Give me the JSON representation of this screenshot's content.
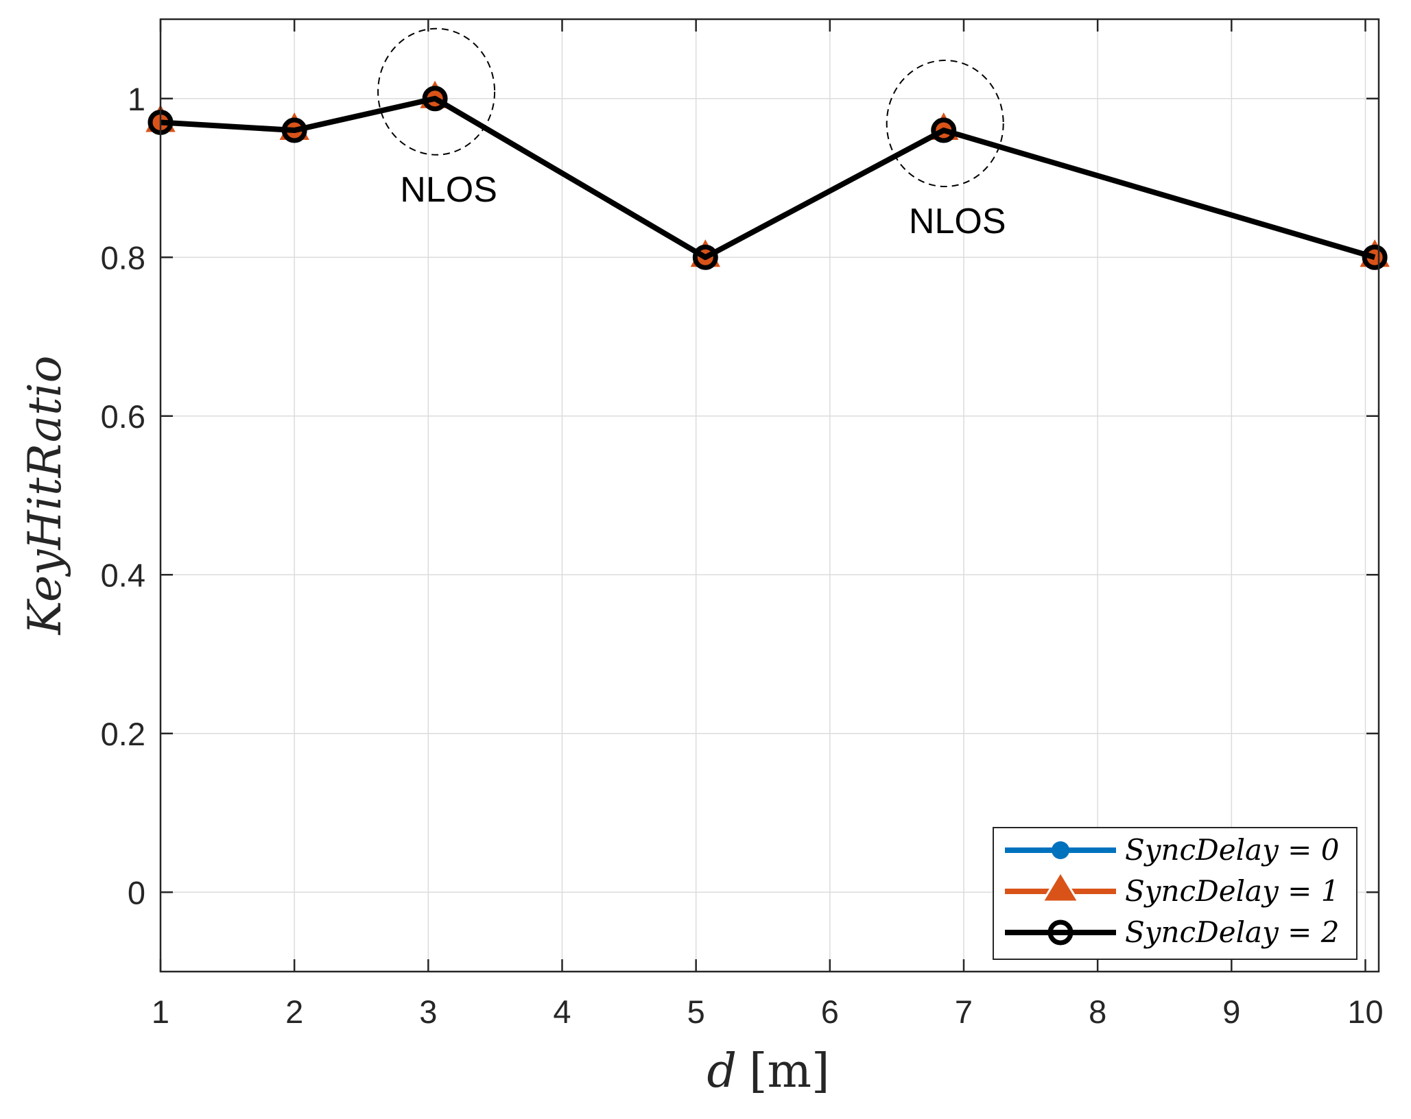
{
  "chart_data": {
    "type": "line",
    "xlabel_var": "d",
    "xlabel_unit": "[m]",
    "ylabel": "KeyHitRatio",
    "xlim": [
      1,
      10.1
    ],
    "ylim": [
      -0.1,
      1.1
    ],
    "xticks": [
      "1",
      "2",
      "3",
      "4",
      "5",
      "6",
      "7",
      "8",
      "9",
      "10"
    ],
    "yticks": [
      "0",
      "0.2",
      "0.4",
      "0.6",
      "0.8",
      "1"
    ],
    "grid": true,
    "legend_position": "bottom-right",
    "series": [
      {
        "name": "SyncDelay = 0",
        "color": "#0072BD",
        "marker": "filled-circle",
        "x": [
          1,
          2,
          3.05,
          5.07,
          6.85,
          10.07
        ],
        "y": [
          0.97,
          0.96,
          1.0,
          0.8,
          0.96,
          0.8
        ]
      },
      {
        "name": "SyncDelay = 1",
        "color": "#D95319",
        "marker": "triangle",
        "x": [
          1,
          2,
          3.05,
          5.07,
          6.85,
          10.07
        ],
        "y": [
          0.97,
          0.96,
          1.0,
          0.8,
          0.96,
          0.8
        ]
      },
      {
        "name": "SyncDelay = 2",
        "color": "#000000",
        "marker": "open-circle",
        "x": [
          1,
          2,
          3.05,
          5.07,
          6.85,
          10.07
        ],
        "y": [
          0.97,
          0.96,
          1.0,
          0.8,
          0.96,
          0.8
        ]
      }
    ],
    "annotations": [
      {
        "text": "NLOS",
        "x": 3.05,
        "y": 1.0
      },
      {
        "text": "NLOS",
        "x": 6.85,
        "y": 0.96
      }
    ]
  }
}
